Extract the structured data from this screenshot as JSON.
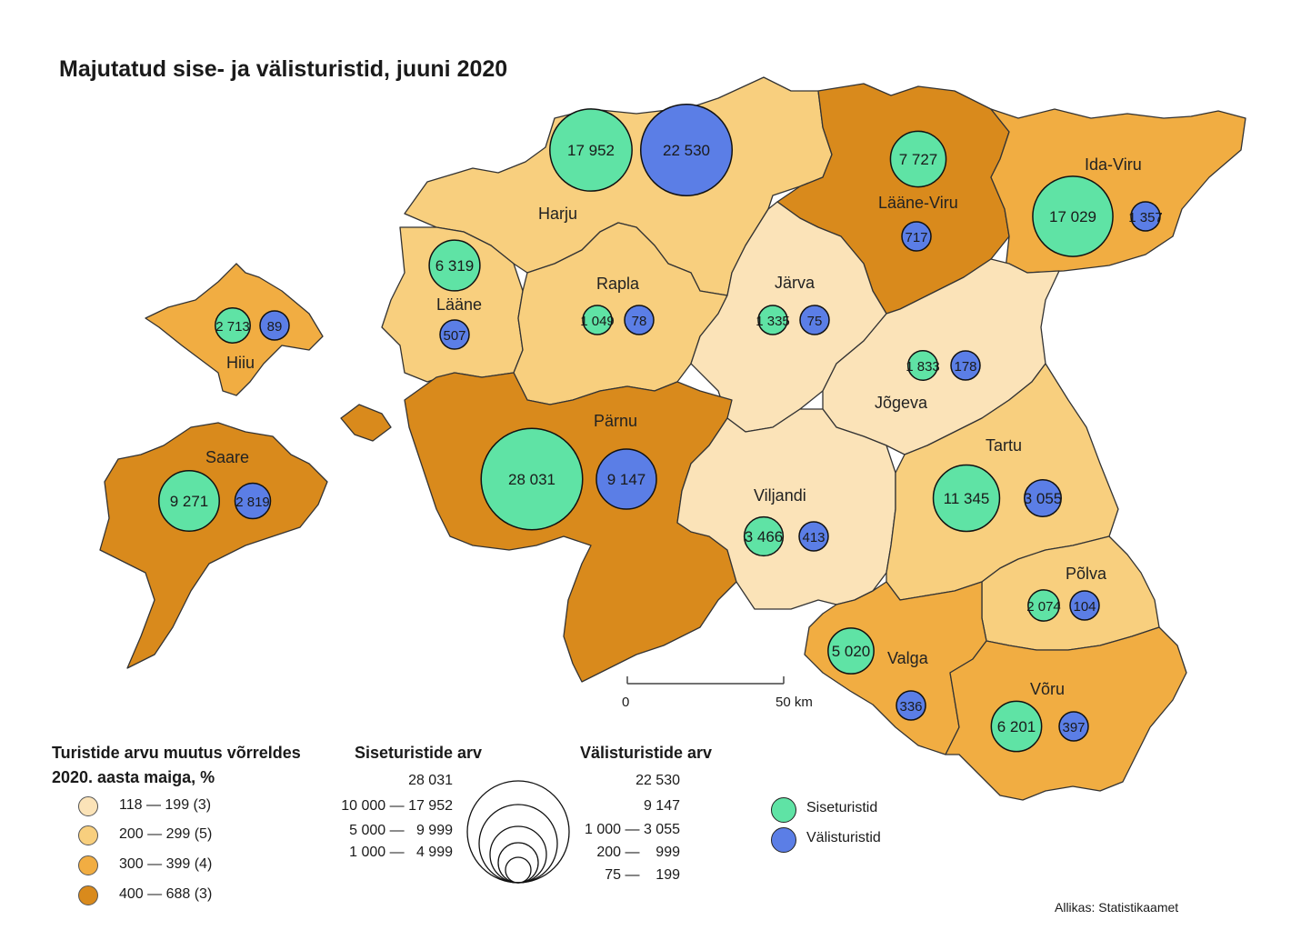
{
  "title": "Majutatud sise- ja välisturistid, juuni 2020",
  "colors": {
    "class1": "#fbe3b8",
    "class2": "#f8cf7e",
    "class3": "#f1ad42",
    "class4": "#d98a1c",
    "domestic": "#5fe3a5",
    "foreign": "#5b7ee6",
    "border": "#333333"
  },
  "counties": [
    {
      "id": "harju",
      "name": "Harju",
      "change_class": 2,
      "domestic": "17 952",
      "foreign": "22 530",
      "domestic_value": 17952,
      "foreign_value": 22530
    },
    {
      "id": "laane-viru",
      "name": "Lääne-Viru",
      "change_class": 4,
      "domestic": "7 727",
      "foreign": "717",
      "domestic_value": 7727,
      "foreign_value": 717
    },
    {
      "id": "ida-viru",
      "name": "Ida-Viru",
      "change_class": 3,
      "domestic": "17 029",
      "foreign": "1 357",
      "domestic_value": 17029,
      "foreign_value": 1357
    },
    {
      "id": "laane",
      "name": "Lääne",
      "change_class": 2,
      "domestic": "6 319",
      "foreign": "507",
      "domestic_value": 6319,
      "foreign_value": 507
    },
    {
      "id": "rapla",
      "name": "Rapla",
      "change_class": 2,
      "domestic": "1 049",
      "foreign": "78",
      "domestic_value": 1049,
      "foreign_value": 78
    },
    {
      "id": "jarva",
      "name": "Järva",
      "change_class": 1,
      "domestic": "1 335",
      "foreign": "75",
      "domestic_value": 1335,
      "foreign_value": 75
    },
    {
      "id": "hiiu",
      "name": "Hiiu",
      "change_class": 3,
      "domestic": "2 713",
      "foreign": "89",
      "domestic_value": 2713,
      "foreign_value": 89
    },
    {
      "id": "jogeva",
      "name": "Jõgeva",
      "change_class": 1,
      "domestic": "1 833",
      "foreign": "178",
      "domestic_value": 1833,
      "foreign_value": 178
    },
    {
      "id": "saare",
      "name": "Saare",
      "change_class": 4,
      "domestic": "9 271",
      "foreign": "2 819",
      "domestic_value": 9271,
      "foreign_value": 2819
    },
    {
      "id": "parnu",
      "name": "Pärnu",
      "change_class": 4,
      "domestic": "28 031",
      "foreign": "9 147",
      "domestic_value": 28031,
      "foreign_value": 9147
    },
    {
      "id": "viljandi",
      "name": "Viljandi",
      "change_class": 1,
      "domestic": "3 466",
      "foreign": "413",
      "domestic_value": 3466,
      "foreign_value": 413
    },
    {
      "id": "tartu",
      "name": "Tartu",
      "change_class": 2,
      "domestic": "11 345",
      "foreign": "3 055",
      "domestic_value": 11345,
      "foreign_value": 3055
    },
    {
      "id": "polva",
      "name": "Põlva",
      "change_class": 2,
      "domestic": "2 074",
      "foreign": "104",
      "domestic_value": 2074,
      "foreign_value": 104
    },
    {
      "id": "valga",
      "name": "Valga",
      "change_class": 3,
      "domestic": "5 020",
      "foreign": "336",
      "domestic_value": 5020,
      "foreign_value": 336
    },
    {
      "id": "voru",
      "name": "Võru",
      "change_class": 3,
      "domestic": "6 201",
      "foreign": "397",
      "domestic_value": 6201,
      "foreign_value": 397
    }
  ],
  "scale": {
    "start": "0",
    "end": "50 km"
  },
  "legend_change": {
    "title_line1": "Turistide arvu muutus võrreldes",
    "title_line2": "2020. aasta maiga, %",
    "items": [
      {
        "label": "118 — 199 (3)"
      },
      {
        "label": "200 — 299 (5)"
      },
      {
        "label": "300 — 399 (4)"
      },
      {
        "label": "400 — 688 (3)"
      }
    ]
  },
  "legend_domestic": {
    "title": "Siseturistide arv",
    "items": [
      "28 031",
      "10 000 — 17 952",
      "5 000 —   9 999",
      "1 000 —   4 999"
    ]
  },
  "legend_foreign": {
    "title": "Välisturistide arv",
    "items": [
      "22 530",
      "9 147",
      "1 000 — 3 055",
      "200 —    999",
      "75 —    199"
    ]
  },
  "legend_type": {
    "domestic": "Siseturistid",
    "foreign": "Välisturistid"
  },
  "source": "Allikas: Statistikaamet"
}
